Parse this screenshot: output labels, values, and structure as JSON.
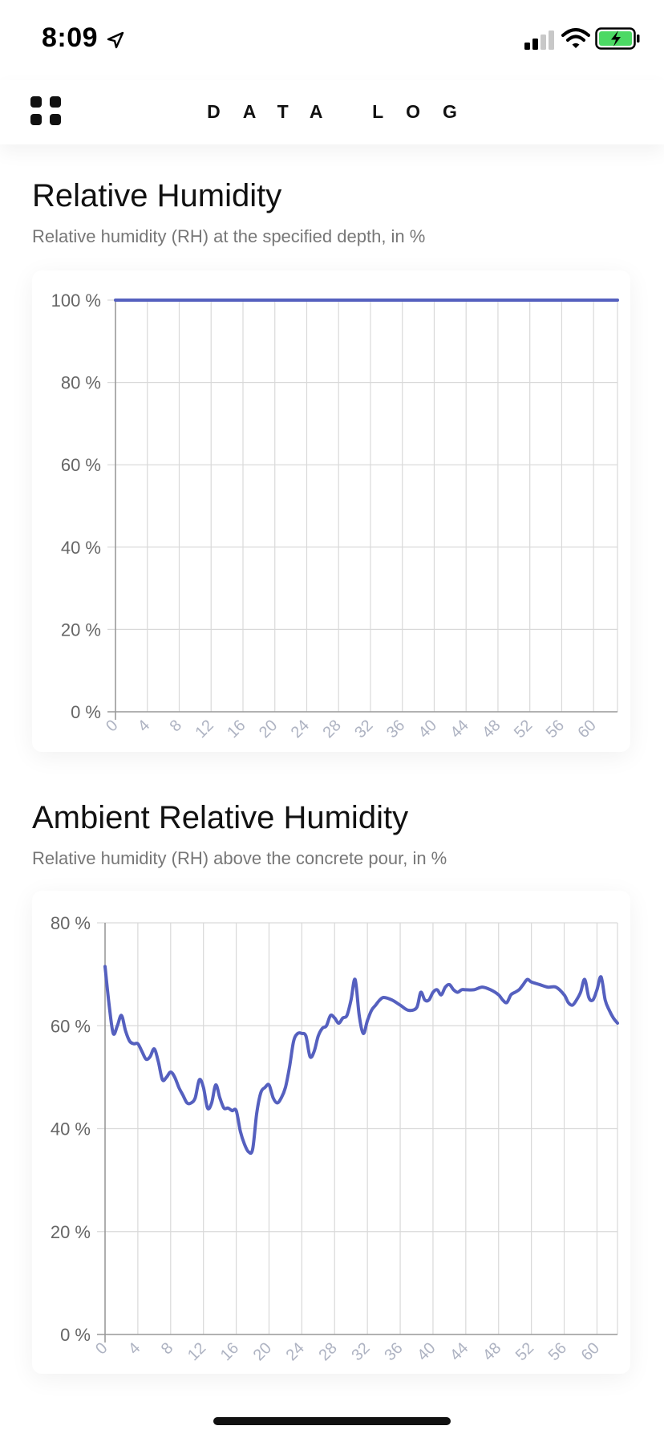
{
  "status_bar": {
    "time": "8:09"
  },
  "nav": {
    "title": "DATA LOG"
  },
  "sections": [
    {
      "title": "Relative Humidity",
      "subtitle": "Relative humidity (RH) at the specified depth, in %"
    },
    {
      "title": "Ambient Relative Humidity",
      "subtitle": "Relative humidity (RH) above the concrete pour, in %"
    }
  ],
  "colors": {
    "series": "#5560BF",
    "grid": "#D9D9D9",
    "axis": "#999999",
    "ylabel": "#666666",
    "xlabel": "#AEB3C2",
    "battery": "#4CD964"
  },
  "chart_data": [
    {
      "type": "line",
      "ylim": [
        0,
        100
      ],
      "yticks": [
        0,
        20,
        40,
        60,
        80,
        100
      ],
      "y_tick_labels": [
        "0 %",
        "20 %",
        "40 %",
        "60 %",
        "80 %",
        "100 %"
      ],
      "xlim": [
        0,
        63
      ],
      "xticks": [
        0,
        4,
        8,
        12,
        16,
        20,
        24,
        28,
        32,
        36,
        40,
        44,
        48,
        52,
        56,
        60
      ],
      "x_tick_labels": [
        "0",
        "4",
        "8",
        "12",
        "16",
        "20",
        "24",
        "28",
        "32",
        "36",
        "40",
        "44",
        "48",
        "52",
        "56",
        "60"
      ],
      "grid": true,
      "series": [
        {
          "x": [
            0,
            63
          ],
          "values": [
            100,
            100
          ]
        }
      ]
    },
    {
      "type": "line",
      "ylim": [
        0,
        80
      ],
      "yticks": [
        0,
        20,
        40,
        60,
        80
      ],
      "y_tick_labels": [
        "0 %",
        "20 %",
        "40 %",
        "60 %",
        "80 %"
      ],
      "xlim": [
        0,
        62.5
      ],
      "xticks": [
        0,
        4,
        8,
        12,
        16,
        20,
        24,
        28,
        32,
        36,
        40,
        44,
        48,
        52,
        56,
        60
      ],
      "x_tick_labels": [
        "0",
        "4",
        "8",
        "12",
        "16",
        "20",
        "24",
        "28",
        "32",
        "36",
        "40",
        "44",
        "48",
        "52",
        "56",
        "60"
      ],
      "grid": true,
      "series": [
        {
          "x": [
            0,
            0.5,
            1,
            1.5,
            2,
            2.5,
            3,
            3.5,
            4,
            4.5,
            5,
            5.5,
            6,
            6.5,
            7,
            7.5,
            8,
            8.5,
            9,
            9.5,
            10,
            10.5,
            11,
            11.5,
            12,
            12.5,
            13,
            13.5,
            14,
            14.5,
            15,
            15.5,
            16,
            16.5,
            17,
            17.5,
            18,
            18.5,
            19,
            19.5,
            20,
            20.5,
            21,
            21.5,
            22,
            22.5,
            23,
            23.5,
            24,
            24.5,
            25,
            25.5,
            26,
            26.5,
            27,
            27.5,
            28,
            28.5,
            29,
            29.5,
            30,
            30.5,
            31,
            31.5,
            32,
            32.5,
            33,
            33.5,
            34,
            35,
            36,
            37,
            38,
            38.5,
            39,
            39.5,
            40,
            40.5,
            41,
            41.5,
            42,
            42.5,
            43,
            43.5,
            44,
            45,
            46,
            47,
            48,
            48.5,
            49,
            49.5,
            50,
            50.5,
            51,
            51.5,
            52,
            53,
            54,
            55,
            56,
            56.5,
            57,
            57.5,
            58,
            58.5,
            59,
            59.5,
            60,
            60.5,
            61,
            61.5,
            62,
            62.5
          ],
          "values": [
            71.5,
            64,
            58.5,
            60,
            62,
            59,
            57,
            56.5,
            56.5,
            55,
            53.5,
            54,
            55.5,
            53,
            49.5,
            50,
            51,
            50,
            48,
            46.5,
            45,
            45,
            46,
            49.5,
            48,
            44,
            45,
            48.5,
            46,
            44,
            44,
            43.5,
            43.5,
            39.5,
            37,
            35.5,
            36,
            43,
            47,
            48,
            48.5,
            46,
            45,
            46,
            48,
            52,
            57,
            58.5,
            58.5,
            58,
            54,
            55,
            58,
            59.5,
            60,
            62,
            61.5,
            60.5,
            61.5,
            62,
            65,
            69,
            62,
            58.5,
            61,
            63,
            64,
            65,
            65.5,
            65,
            64,
            63,
            63.5,
            66.5,
            65,
            65,
            66.5,
            67,
            66,
            67.5,
            68,
            67,
            66.5,
            67,
            67,
            67,
            67.5,
            67,
            66,
            65,
            64.5,
            66,
            66.5,
            67,
            68,
            69,
            68.5,
            68,
            67.5,
            67.5,
            66,
            64.5,
            64,
            65,
            66.5,
            69,
            65.5,
            65,
            67,
            69.5,
            65,
            63,
            61.5,
            60.5
          ]
        }
      ]
    }
  ]
}
